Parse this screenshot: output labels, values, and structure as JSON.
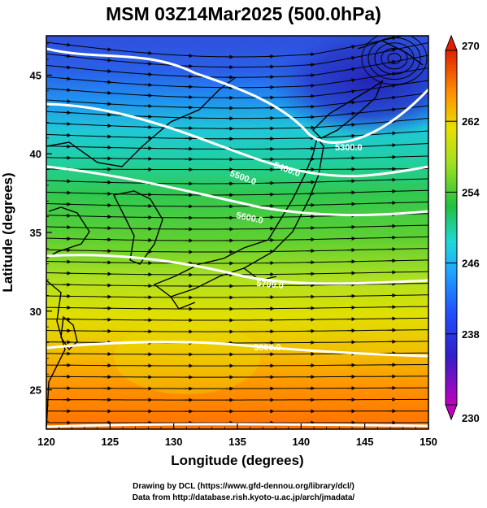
{
  "title": "MSM 03Z14Mar2025 (500.0hPa)",
  "map": {
    "xlabel": "Longitude (degrees)",
    "ylabel": "Latitude  (degrees)",
    "lon_range": [
      120,
      150
    ],
    "lat_range": [
      22.5,
      47.5
    ],
    "x_ticks": [
      "120",
      "125",
      "130",
      "135",
      "140",
      "145",
      "150"
    ],
    "y_ticks": [
      "25",
      "30",
      "35",
      "40",
      "45"
    ],
    "contour_labels": [
      "5300.0",
      "5400.0",
      "5500.0",
      "5600.0",
      "5700.0",
      "5800.0"
    ]
  },
  "colorbar": {
    "min_label": "230",
    "max_label": "270",
    "tick_labels": [
      "238",
      "246",
      "254",
      "262"
    ],
    "colors": [
      "#c000c0",
      "#2020c8",
      "#1890ff",
      "#20d8d8",
      "#20c040",
      "#a0e020",
      "#e8e000",
      "#ff9000",
      "#e02000"
    ]
  },
  "credits": {
    "line1": "Drawing by DCL (https://www.gfd-dennou.org/library/dcl/)",
    "line2": "Data from http://database.rish.kyoto-u.ac.jp/arch/jmadata/"
  }
}
